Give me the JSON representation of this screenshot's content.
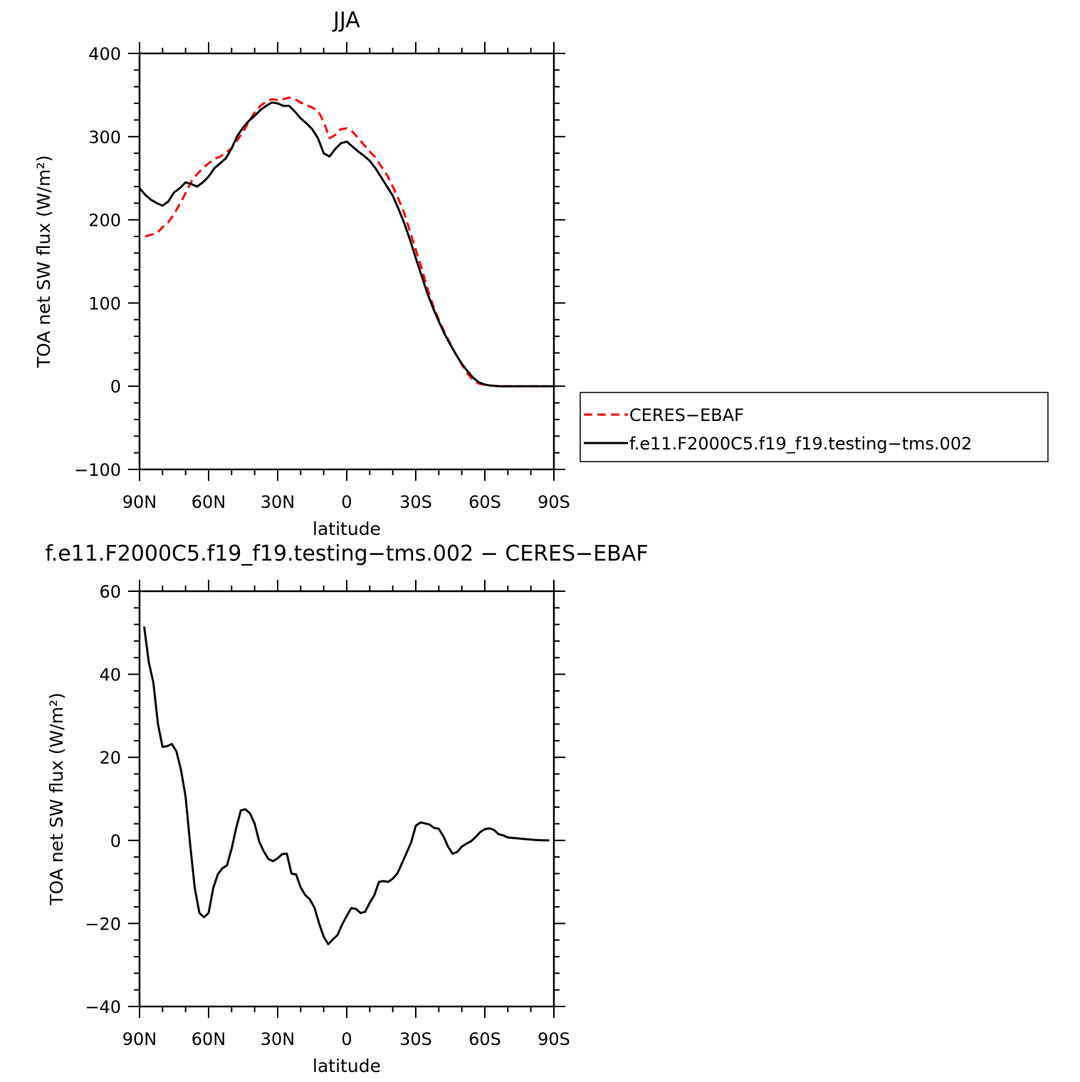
{
  "chart_data": [
    {
      "type": "line",
      "title": "JJA",
      "xlabel": "latitude",
      "ylabel": "TOA net SW flux (W/m²)",
      "xlim": [
        -90,
        90
      ],
      "ylim": [
        -100,
        400
      ],
      "x_ticks": [
        -90,
        -60,
        -30,
        0,
        30,
        60,
        90
      ],
      "x_tick_labels": [
        "90N",
        "60N",
        "30N",
        "0",
        "30S",
        "60S",
        "90S"
      ],
      "y_ticks": [
        -100,
        0,
        100,
        200,
        300,
        400
      ],
      "y_tick_labels": [
        "−100",
        "0",
        "100",
        "200",
        "300",
        "400"
      ],
      "legend_position": "right",
      "series": [
        {
          "name": "CERES−EBAF",
          "color": "#ff0000",
          "dash": "dashed",
          "x": [
            -87.5,
            -85,
            -82.5,
            -80,
            -77.5,
            -75,
            -72.5,
            -70,
            -67.5,
            -65,
            -62.5,
            -60,
            -57.5,
            -55,
            -52.5,
            -50,
            -47.5,
            -45,
            -42.5,
            -40,
            -37.5,
            -35,
            -32.5,
            -30,
            -27.5,
            -25,
            -22.5,
            -20,
            -17.5,
            -15,
            -12.5,
            -10,
            -7.5,
            -5,
            -2.5,
            0,
            2.5,
            5,
            7.5,
            10,
            12.5,
            15,
            17.5,
            20,
            22.5,
            25,
            27.5,
            30,
            32.5,
            35,
            37.5,
            40,
            42.5,
            45,
            47.5,
            50,
            52.5,
            55,
            57.5,
            60,
            62.5,
            65,
            67.5,
            70,
            72.5,
            75,
            77.5,
            80,
            82.5,
            85,
            87.5
          ],
          "y": [
            180,
            182,
            184,
            191,
            197,
            207,
            219,
            232,
            246,
            255,
            262,
            268,
            273,
            276,
            281,
            286,
            296,
            306,
            318,
            329,
            337,
            342,
            345,
            344,
            345,
            347,
            345,
            341,
            338,
            335,
            331,
            318,
            298,
            302,
            309,
            310,
            306,
            298,
            290,
            282,
            275,
            264,
            254,
            240,
            225,
            208,
            186,
            164,
            142,
            118,
            97,
            80,
            65,
            51,
            38,
            26,
            15,
            7,
            3,
            1.5,
            0.8,
            0.3,
            0.1,
            0,
            0,
            0,
            0,
            0,
            0,
            0,
            0
          ]
        },
        {
          "name": "f.e11.F2000C5.f19_f19.testing−tms.002",
          "color": "#000000",
          "dash": "solid",
          "x": [
            -90,
            -87.5,
            -85,
            -82.5,
            -80,
            -77.5,
            -75,
            -72.5,
            -70,
            -67.5,
            -65,
            -62.5,
            -60,
            -57.5,
            -55,
            -52.5,
            -50,
            -47.5,
            -45,
            -42.5,
            -40,
            -37.5,
            -35,
            -32.5,
            -30,
            -27.5,
            -25,
            -22.5,
            -20,
            -17.5,
            -15,
            -12.5,
            -10,
            -7.5,
            -5,
            -2.5,
            0,
            2.5,
            5,
            7.5,
            10,
            12.5,
            15,
            17.5,
            20,
            22.5,
            25,
            27.5,
            30,
            32.5,
            35,
            37.5,
            40,
            42.5,
            45,
            47.5,
            50,
            52.5,
            55,
            57.5,
            60,
            62.5,
            65,
            67.5,
            70,
            72.5,
            75,
            77.5,
            80,
            82.5,
            85,
            87.5,
            90
          ],
          "y": [
            238,
            230,
            224,
            220,
            217,
            222,
            233,
            238,
            245,
            243,
            240,
            245,
            252,
            262,
            268,
            274,
            286,
            301,
            311,
            319,
            325,
            332,
            337,
            341,
            340,
            337,
            337,
            330,
            322,
            316,
            309,
            298,
            280,
            276,
            285,
            292,
            294,
            288,
            282,
            277,
            271,
            262,
            251,
            240,
            229,
            213,
            196,
            176,
            154,
            133,
            112,
            94,
            78,
            63,
            50,
            38,
            27,
            18,
            10,
            4.5,
            2,
            0.8,
            0.2,
            0,
            0,
            0,
            0,
            0,
            0,
            0,
            0,
            0,
            0
          ]
        }
      ]
    },
    {
      "type": "line",
      "title": "f.e11.F2000C5.f19_f19.testing−tms.002 − CERES−EBAF",
      "xlabel": "latitude",
      "ylabel": "TOA net SW flux (W/m²)",
      "xlim": [
        -90,
        90
      ],
      "ylim": [
        -40,
        60
      ],
      "x_ticks": [
        -90,
        -60,
        -30,
        0,
        30,
        60,
        90
      ],
      "x_tick_labels": [
        "90N",
        "60N",
        "30N",
        "0",
        "30S",
        "60S",
        "90S"
      ],
      "y_ticks": [
        -40,
        -20,
        0,
        20,
        40,
        60
      ],
      "y_tick_labels": [
        "−40",
        "−20",
        "0",
        "20",
        "40",
        "60"
      ],
      "series": [
        {
          "color": "#000000",
          "dash": "solid",
          "x": [
            -88,
            -86,
            -84,
            -82,
            -80,
            -78,
            -76,
            -74,
            -72,
            -70,
            -68,
            -66,
            -64,
            -62,
            -60,
            -58,
            -56,
            -54,
            -52,
            -50,
            -48,
            -46,
            -44,
            -42,
            -40,
            -38,
            -36,
            -34,
            -32,
            -30,
            -28,
            -26,
            -24,
            -22,
            -20,
            -18,
            -16,
            -14,
            -12,
            -10,
            -8,
            -6,
            -4,
            -2,
            0,
            2,
            4,
            6,
            8,
            10,
            12,
            14,
            16,
            18,
            20,
            22,
            24,
            26,
            28,
            30,
            32,
            34,
            36,
            38,
            40,
            42,
            44,
            46,
            48,
            50,
            52,
            54,
            56,
            58,
            60,
            62,
            64,
            66,
            68,
            70,
            72,
            74,
            76,
            78,
            80,
            82,
            84,
            86,
            88
          ],
          "y": [
            51.5,
            43,
            38,
            28,
            22.5,
            22.7,
            23.2,
            21.5,
            17,
            10.5,
            -1,
            -11.5,
            -17.5,
            -18.5,
            -17.5,
            -11.5,
            -8.2,
            -6.7,
            -6,
            -2,
            3,
            7.2,
            7.5,
            6.5,
            4,
            -0.3,
            -2.7,
            -4.5,
            -5,
            -4.3,
            -3.3,
            -3.2,
            -8,
            -8.2,
            -11.3,
            -13.2,
            -14.2,
            -16.2,
            -20,
            -23.2,
            -25,
            -23.8,
            -22.8,
            -20.3,
            -18.2,
            -16.3,
            -16.5,
            -17.5,
            -17.2,
            -15,
            -13.2,
            -10,
            -9.8,
            -10,
            -9.2,
            -8,
            -5.5,
            -3,
            -0.5,
            3.5,
            4.3,
            4.1,
            3.8,
            3,
            2.8,
            1,
            -1.5,
            -3.2,
            -2.8,
            -1.5,
            -0.8,
            -0.2,
            0.8,
            2,
            2.7,
            2.9,
            2.5,
            1.5,
            1.2,
            0.7,
            0.6,
            0.5,
            0.4,
            0.3,
            0.2,
            0.1,
            0.05,
            0,
            0
          ]
        }
      ]
    }
  ]
}
